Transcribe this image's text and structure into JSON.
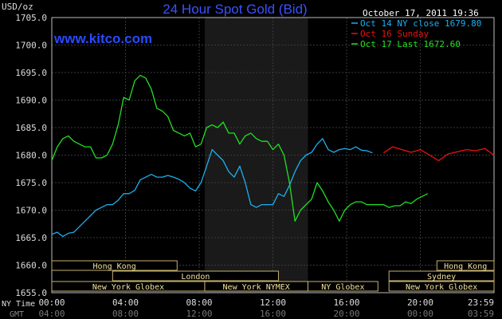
{
  "chart_data": {
    "type": "line",
    "title": "24 Hour Spot Gold (Bid)",
    "watermark": "www.kitco.com",
    "timestamp": "October 17, 2011 19:36",
    "ylabel": "USD/oz",
    "ylim": [
      1655,
      1705
    ],
    "y_ticks": [
      "1705.0",
      "1700.0",
      "1695.0",
      "1690.0",
      "1685.0",
      "1680.0",
      "1675.0",
      "1670.0",
      "1665.0",
      "1660.0",
      "1655.0"
    ],
    "y_tick_values": [
      1705,
      1700,
      1695,
      1690,
      1685,
      1680,
      1675,
      1670,
      1665,
      1660,
      1655
    ],
    "x_axis_label_ny": "NY Time",
    "x_axis_label_gmt": "GMT",
    "xlim": [
      0,
      24
    ],
    "x_ticks": [
      {
        "t": 0,
        "ny": "00:00",
        "gmt": "04:00"
      },
      {
        "t": 4,
        "ny": "04:00",
        "gmt": "08:00"
      },
      {
        "t": 8,
        "ny": "08:00",
        "gmt": "12:00"
      },
      {
        "t": 12,
        "ny": "12:00",
        "gmt": "16:00"
      },
      {
        "t": 16,
        "ny": "16:00",
        "gmt": "20:00"
      },
      {
        "t": 20,
        "ny": "20:00",
        "gmt": "00:00"
      },
      {
        "t": 24,
        "ny": "23:59",
        "gmt": "03:59"
      }
    ],
    "shaded_region": [
      8.3,
      13.9
    ],
    "grid": true,
    "legend_position": "top-right",
    "series": [
      {
        "name": "Oct 14 NY close 1679.80",
        "color": "#1ab0f0",
        "x": [
          0,
          0.3,
          0.6,
          0.9,
          1.2,
          1.5,
          1.8,
          2.1,
          2.4,
          2.7,
          3,
          3.3,
          3.6,
          3.9,
          4.2,
          4.5,
          4.8,
          5.1,
          5.4,
          5.7,
          6,
          6.3,
          6.6,
          6.9,
          7.2,
          7.5,
          7.8,
          8.1,
          8.4,
          8.7,
          9,
          9.3,
          9.6,
          9.9,
          10.2,
          10.5,
          10.8,
          11.1,
          11.4,
          11.7,
          12,
          12.3,
          12.6,
          12.9,
          13.2,
          13.5,
          13.8,
          14.1,
          14.4,
          14.7,
          15,
          15.3,
          15.6,
          15.9,
          16.2,
          16.5,
          16.8,
          17.1,
          17.4
        ],
        "values": [
          1665.6,
          1666,
          1665.2,
          1665.8,
          1666,
          1667,
          1668,
          1669,
          1670,
          1670.5,
          1671,
          1671,
          1671.8,
          1673,
          1673,
          1673.6,
          1675.5,
          1676,
          1676.5,
          1676,
          1676,
          1676.3,
          1676,
          1675.6,
          1675,
          1674,
          1673.5,
          1675,
          1678,
          1681,
          1680,
          1679,
          1677,
          1676,
          1678,
          1675,
          1671,
          1670.5,
          1671,
          1671,
          1671,
          1673,
          1672.5,
          1674.5,
          1677,
          1679,
          1680,
          1680.5,
          1682,
          1683,
          1681,
          1680.5,
          1681,
          1681.2,
          1681,
          1681.5,
          1680.9,
          1680.8,
          1680.4
        ]
      },
      {
        "name": "Oct 16 Sunday",
        "color": "#ee1010",
        "x": [
          18,
          18.5,
          19,
          19.5,
          20,
          20.5,
          21,
          21.5,
          22,
          22.5,
          23,
          23.5,
          24
        ],
        "values": [
          1680.4,
          1681.5,
          1681,
          1680.5,
          1681,
          1680,
          1679,
          1680.2,
          1680.6,
          1681,
          1680.8,
          1681.2,
          1680
        ]
      },
      {
        "name": "Oct 17 Last 1672.60",
        "color": "#22e022",
        "x": [
          0,
          0.3,
          0.6,
          0.9,
          1.2,
          1.5,
          1.8,
          2.1,
          2.4,
          2.7,
          3,
          3.3,
          3.6,
          3.9,
          4.2,
          4.5,
          4.8,
          5.1,
          5.4,
          5.7,
          6,
          6.3,
          6.6,
          6.9,
          7.2,
          7.5,
          7.8,
          8.1,
          8.4,
          8.7,
          9,
          9.3,
          9.6,
          9.9,
          10.2,
          10.5,
          10.8,
          11.1,
          11.4,
          11.7,
          12,
          12.3,
          12.6,
          12.9,
          13.2,
          13.5,
          13.8,
          14.1,
          14.4,
          14.7,
          15,
          15.3,
          15.6,
          15.9,
          16.2,
          16.5,
          16.8,
          17.1,
          17.4,
          17.7,
          18,
          18.3,
          18.6,
          18.9,
          19.2,
          19.5,
          19.8,
          20.1,
          20.4
        ],
        "values": [
          1679,
          1681.5,
          1683,
          1683.5,
          1682.5,
          1682,
          1681.5,
          1681.5,
          1679.5,
          1679.5,
          1680,
          1682,
          1685.5,
          1690.5,
          1690,
          1693.5,
          1694.5,
          1694,
          1692,
          1688.5,
          1688,
          1687,
          1684.5,
          1684,
          1683.5,
          1684,
          1681.5,
          1682,
          1685,
          1685.5,
          1685,
          1686,
          1684,
          1684,
          1682,
          1683.5,
          1684,
          1683,
          1682.5,
          1682.5,
          1681,
          1682,
          1680,
          1675,
          1668,
          1670,
          1671,
          1672,
          1675,
          1673.5,
          1671.5,
          1670,
          1668,
          1670,
          1671,
          1671.5,
          1671.5,
          1671,
          1671,
          1671,
          1671,
          1670.5,
          1670.8,
          1670.8,
          1671.5,
          1671.2,
          1672,
          1672.5,
          1673
        ]
      }
    ],
    "sessions": [
      {
        "name": "Hong Kong",
        "row": 0,
        "start": 0,
        "end": 6.8
      },
      {
        "name": "Hong Kong",
        "row": 0,
        "start": 20.9,
        "end": 24
      },
      {
        "name": "London",
        "row": 1,
        "start": 3.3,
        "end": 12.3
      },
      {
        "name": "Sydney",
        "row": 1,
        "start": 18.3,
        "end": 24
      },
      {
        "name": "New York Globex",
        "row": 2,
        "start": 0,
        "end": 8.3
      },
      {
        "name": "New York NYMEX",
        "row": 2,
        "start": 8.3,
        "end": 13.9
      },
      {
        "name": "NY Globex",
        "row": 2,
        "start": 13.9,
        "end": 17.7
      },
      {
        "name": "New York Globex",
        "row": 2,
        "start": 18.3,
        "end": 24
      }
    ]
  }
}
